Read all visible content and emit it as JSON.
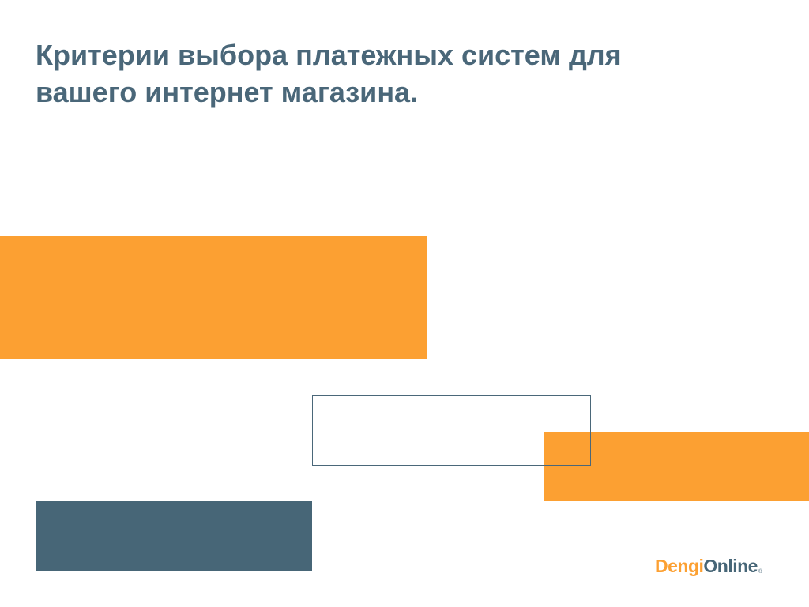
{
  "slide": {
    "title_lines": [
      "Критерии выбора платежных систем для",
      "вашего интернет магазина."
    ]
  },
  "logo": {
    "part1": "Dengi",
    "part2": "Online",
    "mark": "®"
  },
  "colors": {
    "orange": "#fca032",
    "slate": "#476677",
    "title": "#4a6779",
    "outline": "#4a6779"
  }
}
